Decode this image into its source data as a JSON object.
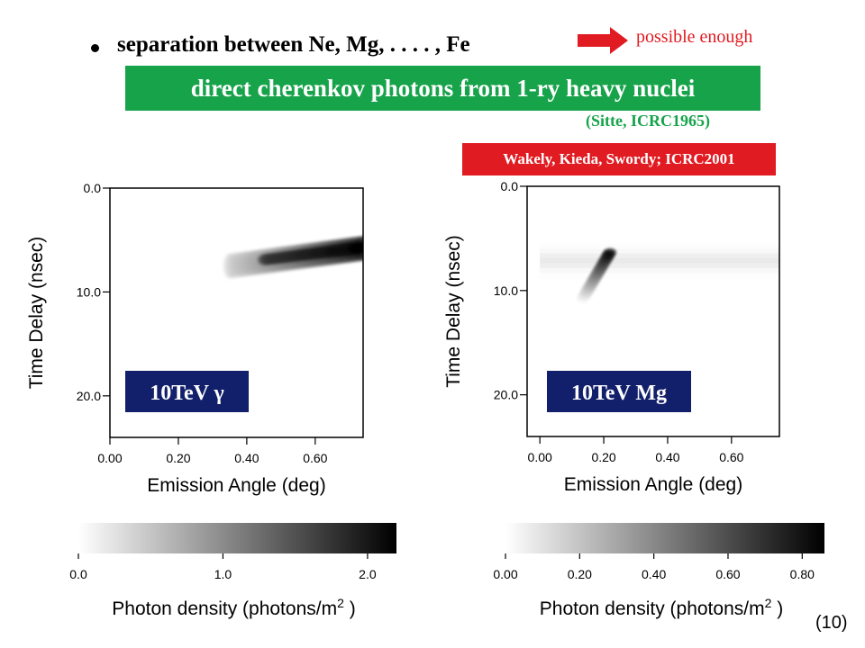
{
  "slide": {
    "bullet_text": "separation between Ne, Mg, . . . . , Fe",
    "arrow_text": "possible enough",
    "green_banner": "direct cherenkov  photons from  1-ry heavy nuclei",
    "green_citation": "(Sitte, ICRC1965)",
    "red_banner": "Wakely, Kieda, Swordy;  ICRC2001",
    "page_number": "(10)"
  },
  "colors": {
    "green": "#16a34a",
    "red": "#e01b22",
    "navy": "#12206b"
  },
  "chart_data": [
    {
      "type": "heatmap",
      "panel_label": "10TeV γ",
      "xlabel": "Emission Angle (deg)",
      "ylabel": "Time Delay (nsec)",
      "xlim": [
        0.0,
        0.74
      ],
      "ylim": [
        24.0,
        0.0
      ],
      "x_ticks": [
        "0.00",
        "0.20",
        "0.40",
        "0.60"
      ],
      "y_ticks": [
        "0.0",
        "10.0",
        "20.0"
      ],
      "blobs": [
        {
          "x0": 0.35,
          "x1": 0.74,
          "t0": 7.5,
          "t1": 5.8,
          "width": 1.2,
          "peak": 2.2,
          "from": 0.2
        },
        {
          "x0": 0.45,
          "x1": 0.74,
          "t0": 6.9,
          "t1": 5.7,
          "width": 0.5,
          "peak": 2.2,
          "from": 0.8
        }
      ],
      "colorbar": {
        "label": "Photon density (photons/m",
        "label_sup": "2",
        "label_end": " )",
        "range": [
          0.0,
          2.2
        ],
        "ticks": [
          "0.0",
          "1.0",
          "2.0"
        ]
      }
    },
    {
      "type": "heatmap",
      "panel_label": "10TeV Mg",
      "xlabel": "Emission Angle (deg)",
      "ylabel": "Time Delay (nsec)",
      "xlim": [
        -0.04,
        0.75
      ],
      "ylim": [
        24.0,
        0.0
      ],
      "x_ticks": [
        "0.00",
        "0.20",
        "0.40",
        "0.60"
      ],
      "y_ticks": [
        "0.0",
        "10.0",
        "20.0"
      ],
      "background_band": {
        "t": 7.2,
        "width": 1.4,
        "level": 0.09
      },
      "blobs": [
        {
          "x0": 0.13,
          "x1": 0.22,
          "t0": 11.0,
          "t1": 6.3,
          "width": 0.35,
          "peak": 0.85,
          "from": 0.0
        }
      ],
      "colorbar": {
        "label": "Photon density (photons/m",
        "label_sup": "2",
        "label_end": " )",
        "range": [
          0.0,
          0.86
        ],
        "ticks": [
          "0.00",
          "0.20",
          "0.40",
          "0.60",
          "0.80"
        ]
      }
    }
  ]
}
